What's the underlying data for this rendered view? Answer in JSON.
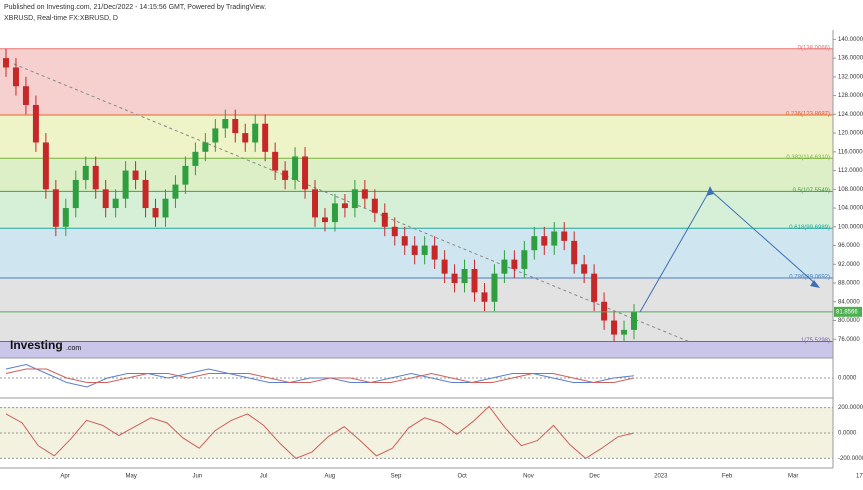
{
  "header": {
    "published": "Published on Investing.com, 21/Dec/2022 - 14:15:56 GMT, Powered by TradingView.",
    "symbol": "XBRUSD, Real-time FX:XBRUSD, D",
    "logo": "Investing",
    "logo_suffix": ".com"
  },
  "chart_data": [
    {
      "type": "candlestick",
      "ylim": [
        72,
        142
      ],
      "yticks": [
        {
          "value": 140,
          "label": "140.0000"
        },
        {
          "value": 136,
          "label": "136.0000"
        },
        {
          "value": 132,
          "label": "132.0000"
        },
        {
          "value": 128,
          "label": "128.0000"
        },
        {
          "value": 124,
          "label": "124.0000"
        },
        {
          "value": 120,
          "label": "120.0000"
        },
        {
          "value": 116,
          "label": "116.0000"
        },
        {
          "value": 112,
          "label": "112.0000"
        },
        {
          "value": 108,
          "label": "108.0000"
        },
        {
          "value": 104,
          "label": "104.0000"
        },
        {
          "value": 100,
          "label": "100.0000"
        },
        {
          "value": 96,
          "label": "96.0000"
        },
        {
          "value": 92,
          "label": "92.0000"
        },
        {
          "value": 88,
          "label": "88.0000"
        },
        {
          "value": 84,
          "label": "84.0000"
        },
        {
          "value": 80,
          "label": "80.0000"
        },
        {
          "value": 76,
          "label": "76.0000"
        }
      ],
      "months": [
        "Apr",
        "May",
        "Jun",
        "Jul",
        "Aug",
        "Sep",
        "Oct",
        "Nov",
        "Dec",
        "2023",
        "Feb",
        "Mar",
        "17"
      ],
      "up_color": "#2e9e3e",
      "down_color": "#c62828",
      "open": [
        136,
        134,
        130,
        126,
        118,
        108,
        100,
        104,
        110,
        113,
        108,
        104,
        106,
        112,
        110,
        104,
        102,
        106,
        109,
        113,
        116,
        118,
        121,
        123,
        120,
        118,
        122,
        116,
        112,
        110,
        115,
        108,
        102,
        101,
        105,
        104,
        108,
        106,
        103,
        100,
        98,
        96,
        94,
        96,
        93,
        90,
        88,
        91,
        86,
        84,
        90,
        93,
        91,
        95,
        98,
        96,
        99,
        97,
        92,
        90,
        84,
        80,
        77,
        78
      ],
      "high": [
        138,
        136,
        132,
        128,
        120,
        110,
        106,
        112,
        115,
        115,
        110,
        108,
        114,
        114,
        112,
        106,
        108,
        111,
        115,
        118,
        120,
        123,
        125,
        125,
        122,
        124,
        124,
        118,
        114,
        117,
        117,
        110,
        104,
        107,
        107,
        110,
        110,
        108,
        105,
        102,
        100,
        98,
        98,
        98,
        95,
        92,
        93,
        93,
        88,
        92,
        95,
        95,
        97,
        100,
        100,
        101,
        101,
        99,
        94,
        92,
        86,
        82,
        80,
        83.5
      ],
      "low": [
        132,
        128,
        124,
        116,
        106,
        98,
        98,
        102,
        108,
        106,
        102,
        102,
        104,
        108,
        102,
        100,
        100,
        104,
        107,
        111,
        114,
        116,
        119,
        118,
        116,
        116,
        114,
        110,
        108,
        108,
        106,
        100,
        99,
        99,
        102,
        102,
        104,
        101,
        98,
        96,
        94,
        92,
        92,
        91,
        88,
        86,
        86,
        84,
        82,
        82,
        88,
        89,
        89,
        93,
        94,
        94,
        95,
        90,
        88,
        82,
        78,
        75.5,
        75.5,
        76
      ],
      "close": [
        134,
        130,
        126,
        118,
        108,
        100,
        104,
        110,
        113,
        108,
        104,
        106,
        112,
        110,
        104,
        102,
        106,
        109,
        113,
        116,
        118,
        121,
        123,
        120,
        118,
        122,
        116,
        112,
        110,
        115,
        108,
        102,
        101,
        105,
        104,
        108,
        106,
        103,
        100,
        98,
        96,
        94,
        96,
        93,
        90,
        88,
        91,
        86,
        84,
        90,
        93,
        91,
        95,
        98,
        96,
        99,
        97,
        92,
        90,
        84,
        80,
        77,
        78,
        81.8566
      ],
      "fib_levels": [
        {
          "value": 138.0066,
          "label": "0(138.0066)",
          "color": "#e57373",
          "band": "#f6d0cf"
        },
        {
          "value": 123.8687,
          "label": "0.236(123.8687)",
          "color": "#e0662a",
          "band": "#eef3c8"
        },
        {
          "value": 114.631,
          "label": "0.382(114.6310)",
          "color": "#7cb342",
          "band": "#dcefc6"
        },
        {
          "value": 107.5549,
          "label": "0.5(107.5549)",
          "color": "#43a047",
          "band": "#d6f0d8"
        },
        {
          "value": 99.6989,
          "label": "0.618(99.6989)",
          "color": "#26a69a",
          "band": "#cfe6f1"
        },
        {
          "value": 89.0692,
          "label": "0.786(89.0692)",
          "color": "#4f7fbf",
          "band": "#e2e2e2"
        },
        {
          "value": 75.5298,
          "label": "1(75.5298)",
          "color": "#7e57c2",
          "band": "#c9c6ea"
        }
      ],
      "last_price": 81.8566,
      "last_color": "#4caf50"
    },
    {
      "type": "line",
      "ylim": [
        -4,
        4
      ],
      "yticks": [
        {
          "value": 0,
          "label": "0.0000"
        }
      ],
      "series": [
        {
          "color": "#5b7fd0",
          "values": [
            2,
            3,
            1,
            -1,
            -2,
            0,
            1,
            1,
            0,
            1,
            2,
            1,
            0,
            -1,
            -1,
            0,
            0,
            -1,
            -1,
            0,
            1,
            0,
            -1,
            -1,
            0,
            1,
            1,
            0,
            -1,
            -1,
            0,
            0.5
          ]
        },
        {
          "color": "#d0605a",
          "values": [
            1,
            2,
            2,
            0,
            -1,
            -1,
            0,
            1,
            1,
            0,
            1,
            1,
            1,
            0,
            -1,
            -1,
            0,
            0,
            -1,
            -1,
            0,
            1,
            0,
            -1,
            -1,
            0,
            1,
            1,
            0,
            -1,
            -1,
            0
          ]
        }
      ]
    },
    {
      "type": "line",
      "ylim": [
        -260,
        260
      ],
      "yticks": [
        {
          "value": 200,
          "label": "200.0000"
        },
        {
          "value": 0,
          "label": "0.0000"
        },
        {
          "value": -200,
          "label": "-200.0000"
        }
      ],
      "series": [
        {
          "color": "#d0605a",
          "values": [
            150,
            80,
            -100,
            -180,
            -50,
            100,
            60,
            -20,
            50,
            120,
            80,
            -40,
            -120,
            20,
            100,
            150,
            60,
            -80,
            -200,
            -150,
            -30,
            50,
            -60,
            -180,
            -120,
            40,
            120,
            80,
            -10,
            90,
            210,
            40,
            -100,
            -60,
            60,
            -90,
            -200,
            -120,
            -30,
            0
          ]
        }
      ]
    }
  ]
}
